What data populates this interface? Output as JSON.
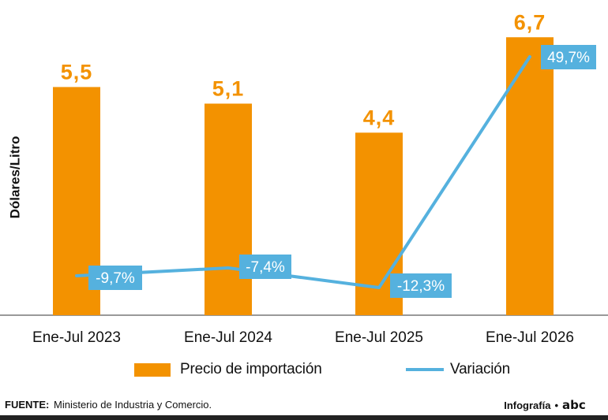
{
  "chart_data": {
    "type": "bar",
    "categories": [
      "Ene-Jul 2023",
      "Ene-Jul 2024",
      "Ene-Jul 2025",
      "Ene-Jul 2026"
    ],
    "series": [
      {
        "name": "Precio de importación",
        "type": "bar",
        "values": [
          5.5,
          5.1,
          4.4,
          6.7
        ],
        "labels": [
          "5,5",
          "5,1",
          "4,4",
          "6,7"
        ],
        "color": "#f39200"
      },
      {
        "name": "Variación",
        "type": "line",
        "values": [
          -9.7,
          -7.4,
          -12.3,
          49.7
        ],
        "labels": [
          "-9,7%",
          "-7,4%",
          "-12,3%",
          "49,7%"
        ],
        "color": "#55b1de"
      }
    ],
    "ylabel": "Dólares/Litro",
    "ylim": [
      0,
      6.8
    ],
    "grid": false,
    "legend": "bottom"
  },
  "source": {
    "label": "FUENTE:",
    "text": "Ministerio de Industria y Comercio."
  },
  "credit": {
    "text": "Infografía",
    "separator": "•",
    "logo": "abc"
  },
  "colors": {
    "bar": "#f39200",
    "line": "#55b1de",
    "label_box": "#55b1de",
    "text": "#111111"
  }
}
